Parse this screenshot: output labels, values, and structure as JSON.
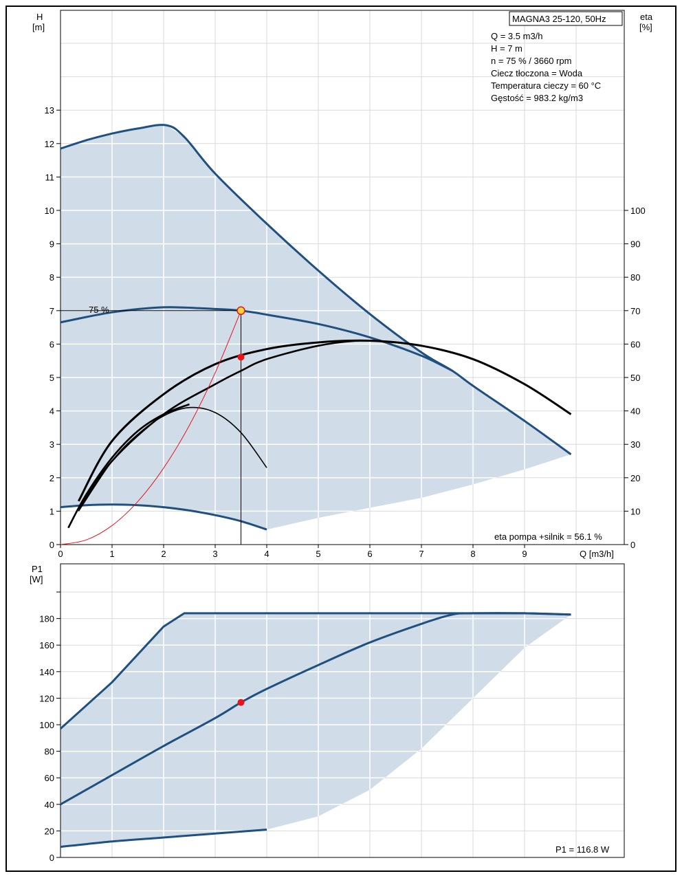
{
  "upper": {
    "y_label_line1": "H",
    "y_label_line2": "[m]",
    "y2_label_line1": "eta",
    "y2_label_line2": "[%]",
    "x_label": "Q [m3/h]",
    "x_ticks": [
      "0",
      "1",
      "2",
      "3",
      "4",
      "5",
      "6",
      "7",
      "8",
      "9"
    ],
    "y_ticks": [
      "0",
      "1",
      "2",
      "3",
      "4",
      "5",
      "6",
      "7",
      "8",
      "9",
      "10",
      "11",
      "12",
      "13"
    ],
    "y2_ticks": [
      "0",
      "10",
      "20",
      "30",
      "40",
      "50",
      "60",
      "70",
      "80",
      "90",
      "100"
    ],
    "title_box": "MAGNA3 25-120, 50Hz",
    "info_lines": [
      "Q = 3.5 m3/h",
      "H = 7 m",
      "n = 75 % / 3660 rpm",
      "Ciecz tłoczona = Woda",
      "Temperatura cieczy = 60 °C",
      "Gęstość = 983.2 kg/m3"
    ],
    "curve_label": "75 %",
    "eta_note": "eta pompa +silnik = 56.1 %"
  },
  "lower": {
    "y_label_line1": "P1",
    "y_label_line2": "[W]",
    "y_ticks": [
      "0",
      "20",
      "40",
      "60",
      "80",
      "100",
      "120",
      "140",
      "160",
      "180"
    ],
    "p1_note": "P1 = 116.8 W"
  },
  "colors": {
    "curve": "#1f5080",
    "area": "#d0dce8",
    "grid": "#ffffff",
    "gridOut": "#d9d9d9",
    "point": "#e8141a",
    "opPoint": "#ffd43b",
    "system": "#e8141a",
    "eta": "#000000"
  },
  "chart_data": [
    {
      "type": "line",
      "xlabel": "Q [m3/h]",
      "ylabel": "H [m]",
      "y2label": "eta [%]",
      "xlim": [
        0,
        10
      ],
      "ylim": [
        0,
        15
      ],
      "y2lim": [
        0,
        150
      ],
      "series": [
        {
          "name": "",
          "role": "max_curve",
          "x": [
            0,
            0.5,
            1,
            1.5,
            2.05,
            2.4,
            3,
            4,
            5,
            6,
            7,
            7.6,
            8,
            9,
            9.9
          ],
          "y": [
            11.85,
            12.1,
            12.3,
            12.45,
            12.55,
            12.2,
            11.1,
            9.6,
            8.2,
            6.9,
            5.75,
            5.2,
            4.75,
            3.7,
            2.7
          ]
        },
        {
          "name": "75 %",
          "role": "speed_curve",
          "x": [
            0,
            1,
            2,
            3,
            3.5,
            4,
            5,
            6,
            7,
            7.6
          ],
          "y": [
            6.65,
            6.95,
            7.1,
            7.05,
            7.0,
            6.88,
            6.6,
            6.2,
            5.65,
            5.2
          ]
        },
        {
          "name": "",
          "role": "min_curve",
          "x": [
            0,
            0.5,
            1,
            1.5,
            2,
            2.5,
            3,
            3.5,
            4
          ],
          "y": [
            1.12,
            1.18,
            1.2,
            1.18,
            1.12,
            1.02,
            0.88,
            0.7,
            0.45
          ]
        },
        {
          "name": "",
          "role": "area_lower_boundary",
          "x": [
            4,
            5,
            6,
            7,
            8,
            9,
            9.9
          ],
          "y": [
            0.45,
            0.8,
            1.1,
            1.4,
            1.8,
            2.25,
            2.7
          ]
        },
        {
          "name": "",
          "role": "eta_max",
          "x": [
            0.35,
            1,
            2,
            3,
            4,
            5,
            6,
            7,
            8,
            9,
            9.9
          ],
          "y2": [
            13,
            31,
            45,
            54,
            58.5,
            60.5,
            61,
            59.5,
            55.5,
            48,
            39
          ]
        },
        {
          "name": "",
          "role": "eta_75",
          "x": [
            0.35,
            1,
            2,
            3,
            3.5,
            4,
            5,
            5.8,
            6.5,
            7
          ],
          "y2": [
            10.5,
            25,
            39,
            48,
            52,
            55.5,
            59.5,
            61,
            60.5,
            59.5
          ]
        },
        {
          "name": "",
          "role": "eta_min",
          "x": [
            0.35,
            1,
            1.5,
            2,
            2.5,
            3,
            3.5,
            4
          ],
          "y2": [
            10,
            25,
            33,
            38.5,
            41,
            39.5,
            33.5,
            23
          ]
        },
        {
          "name": "",
          "role": "eta_extra",
          "x": [
            0.15,
            0.5,
            1,
            1.5,
            2,
            2.5
          ],
          "y2": [
            5,
            15,
            26,
            34,
            39,
            42
          ]
        },
        {
          "name": "",
          "role": "system_curve",
          "x": [
            0,
            0.5,
            1,
            1.5,
            2,
            2.5,
            3,
            3.5
          ],
          "y": [
            0,
            0.14,
            0.57,
            1.29,
            2.29,
            3.57,
            5.14,
            7.0
          ]
        }
      ],
      "points": [
        {
          "role": "duty_point",
          "x": 3.5,
          "y": 7.0
        },
        {
          "role": "eta_point",
          "x": 3.5,
          "y2": 56.1
        }
      ]
    },
    {
      "type": "line",
      "xlabel": "Q [m3/h]",
      "ylabel": "P1 [W]",
      "xlim": [
        0,
        10
      ],
      "ylim": [
        0,
        200
      ],
      "series": [
        {
          "name": "",
          "role": "p1_max",
          "x": [
            0,
            1,
            2,
            2.4,
            3,
            4,
            5,
            6,
            7,
            8,
            9,
            9.9
          ],
          "y": [
            97,
            132,
            174,
            184,
            184,
            184,
            184,
            184,
            184,
            184,
            184,
            183
          ]
        },
        {
          "name": "",
          "role": "p1_75",
          "x": [
            0,
            1,
            2,
            3,
            3.5,
            4,
            5,
            6,
            7,
            7.6,
            8,
            9,
            9.9
          ],
          "y": [
            40,
            62,
            84,
            105,
            116.8,
            127,
            145,
            162,
            176,
            183,
            184,
            184,
            183
          ]
        },
        {
          "name": "",
          "role": "p1_min",
          "x": [
            0,
            1,
            2,
            3,
            4
          ],
          "y": [
            8,
            12,
            15,
            18,
            21
          ]
        },
        {
          "name": "",
          "role": "area_lower_boundary",
          "x": [
            4,
            5,
            6,
            7,
            8,
            9,
            9.9
          ],
          "y": [
            21,
            31,
            51,
            82,
            120,
            158,
            183
          ]
        }
      ],
      "points": [
        {
          "role": "p1_point",
          "x": 3.5,
          "y": 116.8
        }
      ]
    }
  ]
}
